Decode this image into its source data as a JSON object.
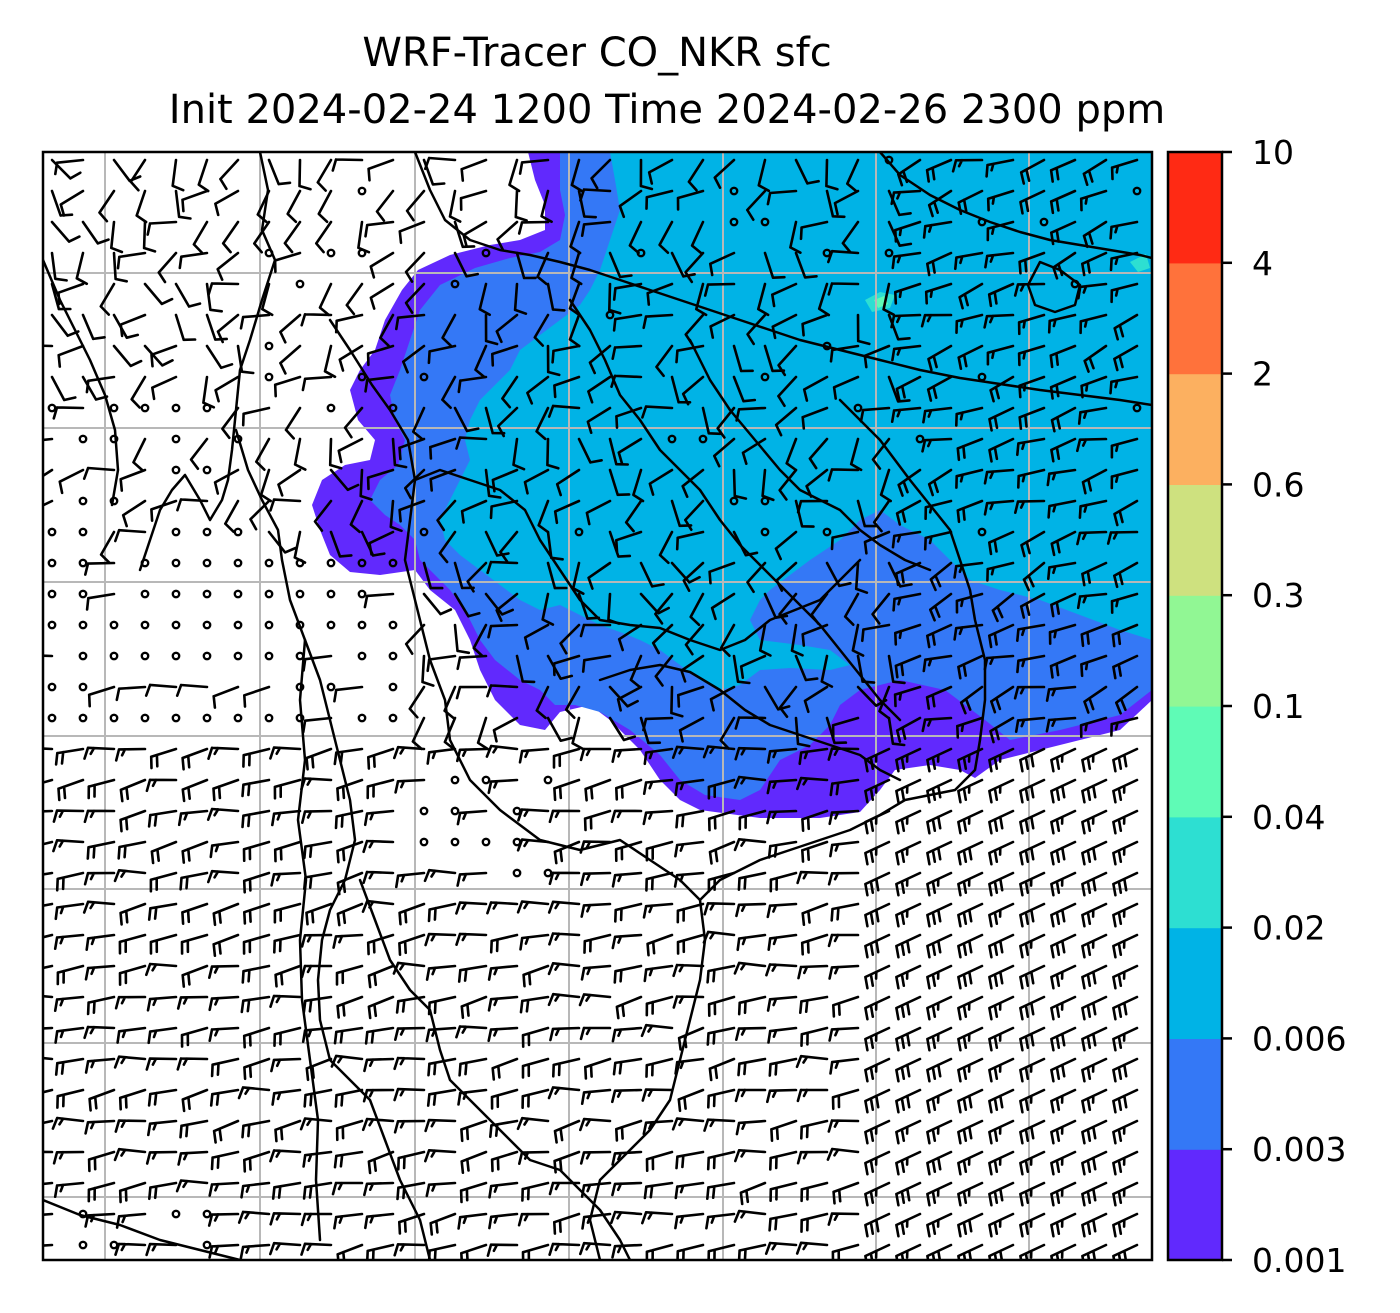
{
  "figure": {
    "title_line1": "WRF-Tracer CO_NKR sfc",
    "title_line2": "Init 2024-02-24 1200 Time 2024-02-26 2300 ppm"
  },
  "colorbar": {
    "levels": [
      "0.001",
      "0.003",
      "0.006",
      "0.02",
      "0.04",
      "0.1",
      "0.3",
      "0.6",
      "2",
      "4",
      "10"
    ],
    "colors": [
      "#6129fd",
      "#3478f6",
      "#00b3e6",
      "#2ddfd2",
      "#5ffbb6",
      "#91f794",
      "#cee17f",
      "#fcb060",
      "#ff723b",
      "#ff2a14"
    ]
  },
  "map": {
    "plume_levels_shown": [
      "0.001",
      "0.003",
      "0.006",
      "0.02",
      "0.04"
    ],
    "wind_barbs": true,
    "gridlines": true,
    "coastlines": true
  }
}
